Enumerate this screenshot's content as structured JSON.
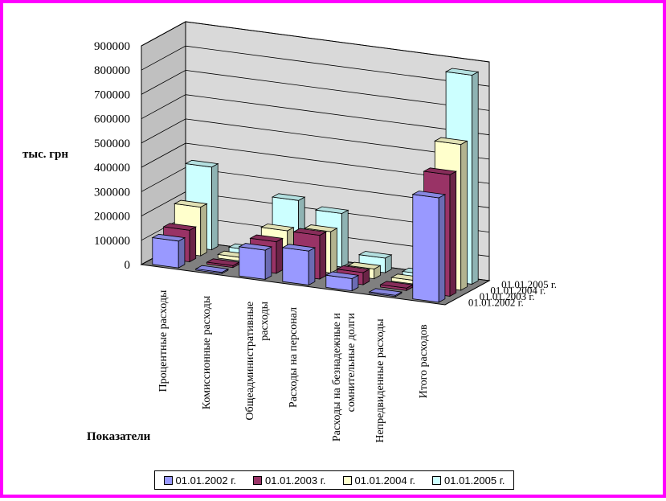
{
  "chart_data": {
    "type": "bar",
    "projection": "3d-clustered-depth",
    "ylabel": "тыс. грн",
    "xlabel": "Показатели",
    "ylim": [
      0,
      900000
    ],
    "yticks": [
      0,
      100000,
      200000,
      300000,
      400000,
      500000,
      600000,
      700000,
      800000,
      900000
    ],
    "ytick_labels": [
      "0",
      "100000",
      "200000",
      "300000",
      "400000",
      "500000",
      "600000",
      "700000",
      "800000",
      "900000"
    ],
    "categories": [
      "Процентные расходы",
      "Комиссионные расходы",
      "Общеадминистративные расходы",
      "Расходы на персонал",
      "Расходы на безнадежные и сомнительные долги",
      "Непредвиденные расходы",
      "Итого расходов"
    ],
    "category_lines": [
      [
        "Процентные расходы"
      ],
      [
        "Комиссионные расходы"
      ],
      [
        "Общеадминистративные",
        "расходы"
      ],
      [
        "Расходы на персонал"
      ],
      [
        "Расходы на безнадежные и",
        "сомнительные долги"
      ],
      [
        "Непредвиденные расходы"
      ],
      [
        "Итого расходов"
      ]
    ],
    "series": [
      {
        "name": "01.01.2002 г.",
        "color": "#9999ff",
        "values": [
          110000,
          5000,
          120000,
          140000,
          50000,
          5000,
          430000
        ]
      },
      {
        "name": "01.01.2003 г.",
        "color": "#993366",
        "values": [
          130000,
          8000,
          130000,
          180000,
          50000,
          10000,
          500000
        ]
      },
      {
        "name": "01.01.2004 г.",
        "color": "#ffffcc",
        "values": [
          200000,
          15000,
          150000,
          170000,
          40000,
          15000,
          600000
        ]
      },
      {
        "name": "01.01.2005 г.",
        "color": "#ccffff",
        "values": [
          340000,
          20000,
          250000,
          220000,
          60000,
          15000,
          860000
        ]
      }
    ],
    "grid": true,
    "legend_position": "bottom"
  }
}
